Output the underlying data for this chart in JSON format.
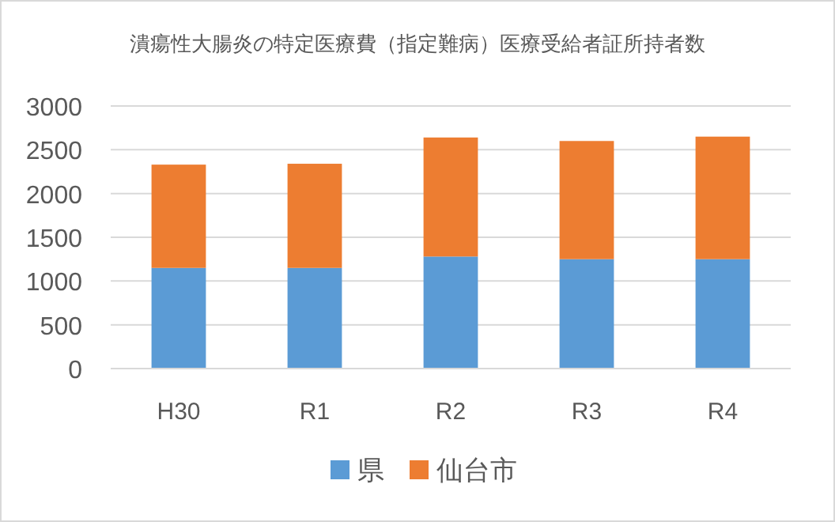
{
  "chart_data": {
    "type": "bar",
    "title": "潰瘍性大腸炎の特定医療費（指定難病）医療受給者証所持者数",
    "stacked": true,
    "categories": [
      "H30",
      "R1",
      "R2",
      "R3",
      "R4"
    ],
    "series": [
      {
        "name": "県",
        "color": "#5b9bd5",
        "values": [
          1150,
          1150,
          1280,
          1250,
          1250
        ]
      },
      {
        "name": "仙台市",
        "color": "#ed7d31",
        "values": [
          1180,
          1190,
          1360,
          1350,
          1400
        ]
      }
    ],
    "ylim": [
      0,
      3000
    ],
    "yticks": [
      0,
      500,
      1000,
      1500,
      2000,
      2500,
      3000
    ],
    "grid": "y",
    "legend": "bottom"
  }
}
